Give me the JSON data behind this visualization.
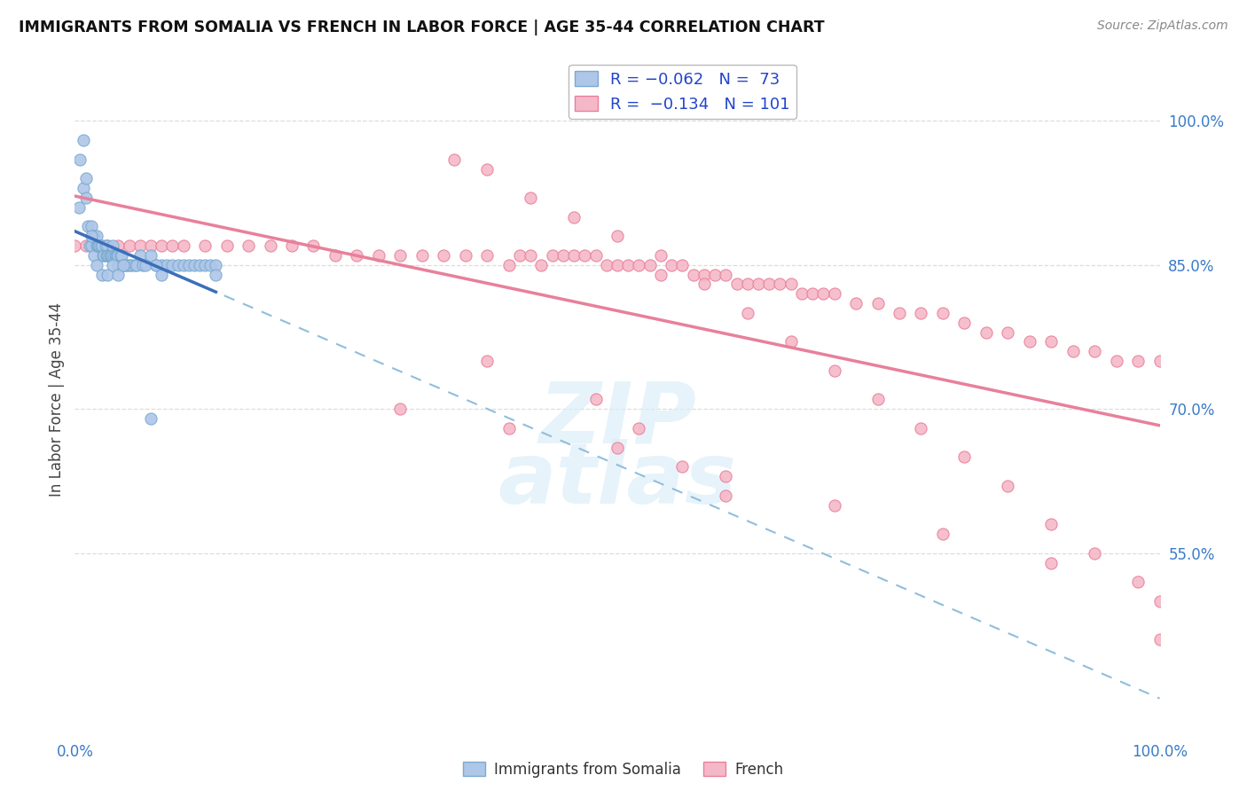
{
  "title": "IMMIGRANTS FROM SOMALIA VS FRENCH IN LABOR FORCE | AGE 35-44 CORRELATION CHART",
  "source": "Source: ZipAtlas.com",
  "ylabel": "In Labor Force | Age 35-44",
  "xlim": [
    0.0,
    1.0
  ],
  "ylim": [
    0.36,
    1.06
  ],
  "y_tick_values_right": [
    1.0,
    0.85,
    0.7,
    0.55
  ],
  "y_tick_labels_right": [
    "100.0%",
    "85.0%",
    "70.0%",
    "55.0%"
  ],
  "watermark_top": "ZIP",
  "watermark_bottom": "atlas",
  "legend_r1": "R = -0.062",
  "legend_n1": "N =  73",
  "legend_r2": "R =  -0.134",
  "legend_n2": "N = 101",
  "somalia_color": "#aec6e8",
  "french_color": "#f5b8c8",
  "somalia_edge_color": "#7aaad0",
  "french_edge_color": "#e8809a",
  "trend_somalia_color": "#3a6fbb",
  "trend_french_color": "#e8809a",
  "trend_dashed_color": "#90bedd",
  "background_color": "#ffffff",
  "grid_color": "#dddddd",
  "somalia_x": [
    0.004,
    0.008,
    0.008,
    0.01,
    0.012,
    0.014,
    0.015,
    0.015,
    0.016,
    0.018,
    0.018,
    0.02,
    0.02,
    0.021,
    0.022,
    0.023,
    0.024,
    0.025,
    0.026,
    0.027,
    0.028,
    0.029,
    0.03,
    0.03,
    0.031,
    0.032,
    0.033,
    0.034,
    0.035,
    0.036,
    0.037,
    0.038,
    0.039,
    0.04,
    0.04,
    0.042,
    0.043,
    0.045,
    0.046,
    0.048,
    0.05,
    0.052,
    0.055,
    0.057,
    0.06,
    0.063,
    0.065,
    0.07,
    0.075,
    0.08,
    0.085,
    0.09,
    0.095,
    0.1,
    0.105,
    0.11,
    0.115,
    0.12,
    0.125,
    0.13,
    0.005,
    0.01,
    0.015,
    0.02,
    0.025,
    0.03,
    0.035,
    0.04,
    0.045,
    0.07,
    0.075,
    0.08,
    0.13
  ],
  "somalia_y": [
    0.91,
    0.98,
    0.93,
    0.92,
    0.89,
    0.87,
    0.89,
    0.87,
    0.88,
    0.88,
    0.86,
    0.88,
    0.87,
    0.87,
    0.87,
    0.87,
    0.87,
    0.87,
    0.86,
    0.86,
    0.87,
    0.86,
    0.87,
    0.86,
    0.86,
    0.86,
    0.86,
    0.86,
    0.87,
    0.86,
    0.86,
    0.86,
    0.86,
    0.86,
    0.85,
    0.86,
    0.86,
    0.85,
    0.85,
    0.85,
    0.85,
    0.85,
    0.85,
    0.85,
    0.86,
    0.85,
    0.85,
    0.86,
    0.85,
    0.85,
    0.85,
    0.85,
    0.85,
    0.85,
    0.85,
    0.85,
    0.85,
    0.85,
    0.85,
    0.85,
    0.96,
    0.94,
    0.88,
    0.85,
    0.84,
    0.84,
    0.85,
    0.84,
    0.85,
    0.69,
    0.85,
    0.84,
    0.84
  ],
  "french_x": [
    0.0,
    0.01,
    0.02,
    0.03,
    0.04,
    0.05,
    0.06,
    0.07,
    0.08,
    0.09,
    0.1,
    0.12,
    0.14,
    0.16,
    0.18,
    0.2,
    0.22,
    0.24,
    0.26,
    0.28,
    0.3,
    0.32,
    0.34,
    0.36,
    0.38,
    0.4,
    0.41,
    0.42,
    0.43,
    0.44,
    0.45,
    0.46,
    0.47,
    0.48,
    0.49,
    0.5,
    0.51,
    0.52,
    0.53,
    0.54,
    0.55,
    0.56,
    0.57,
    0.58,
    0.59,
    0.6,
    0.61,
    0.62,
    0.63,
    0.64,
    0.65,
    0.66,
    0.67,
    0.68,
    0.69,
    0.7,
    0.72,
    0.74,
    0.76,
    0.78,
    0.8,
    0.82,
    0.84,
    0.86,
    0.88,
    0.9,
    0.92,
    0.94,
    0.96,
    0.98,
    1.0,
    0.35,
    0.38,
    0.42,
    0.46,
    0.5,
    0.54,
    0.58,
    0.62,
    0.66,
    0.7,
    0.74,
    0.78,
    0.82,
    0.86,
    0.9,
    0.94,
    0.98,
    0.3,
    0.4,
    0.5,
    0.6,
    0.7,
    0.8,
    0.9,
    1.0,
    0.38,
    0.48,
    0.52,
    0.56,
    0.6,
    1.0
  ],
  "french_y": [
    0.87,
    0.87,
    0.87,
    0.87,
    0.87,
    0.87,
    0.87,
    0.87,
    0.87,
    0.87,
    0.87,
    0.87,
    0.87,
    0.87,
    0.87,
    0.87,
    0.87,
    0.86,
    0.86,
    0.86,
    0.86,
    0.86,
    0.86,
    0.86,
    0.86,
    0.85,
    0.86,
    0.86,
    0.85,
    0.86,
    0.86,
    0.86,
    0.86,
    0.86,
    0.85,
    0.85,
    0.85,
    0.85,
    0.85,
    0.84,
    0.85,
    0.85,
    0.84,
    0.84,
    0.84,
    0.84,
    0.83,
    0.83,
    0.83,
    0.83,
    0.83,
    0.83,
    0.82,
    0.82,
    0.82,
    0.82,
    0.81,
    0.81,
    0.8,
    0.8,
    0.8,
    0.79,
    0.78,
    0.78,
    0.77,
    0.77,
    0.76,
    0.76,
    0.75,
    0.75,
    0.75,
    0.96,
    0.95,
    0.92,
    0.9,
    0.88,
    0.86,
    0.83,
    0.8,
    0.77,
    0.74,
    0.71,
    0.68,
    0.65,
    0.62,
    0.58,
    0.55,
    0.52,
    0.7,
    0.68,
    0.66,
    0.63,
    0.6,
    0.57,
    0.54,
    0.5,
    0.75,
    0.71,
    0.68,
    0.64,
    0.61,
    0.46
  ]
}
